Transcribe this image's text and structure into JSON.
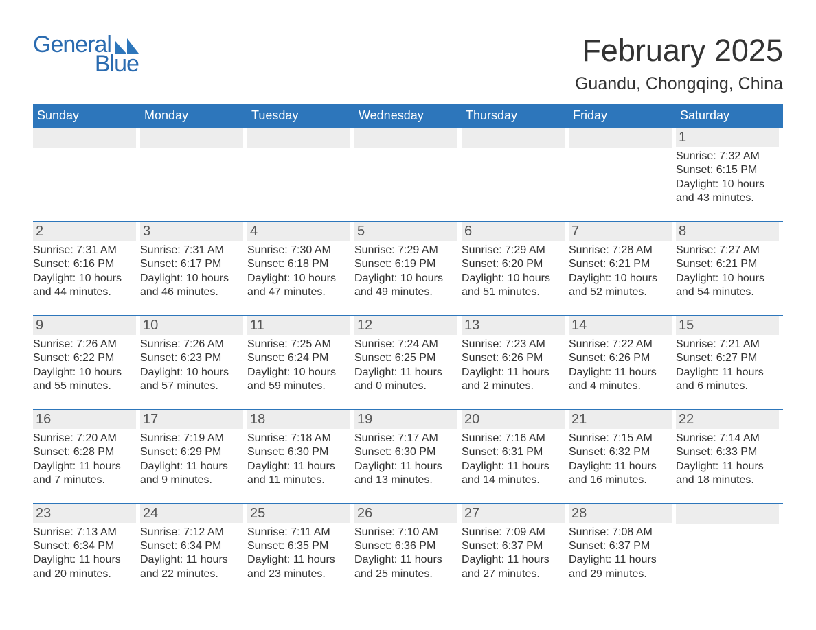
{
  "brand": {
    "line1": "General",
    "line2": "Blue",
    "accent": "#2d76bb"
  },
  "title": "February 2025",
  "location": "Guandu, Chongqing, China",
  "dow": [
    "Sunday",
    "Monday",
    "Tuesday",
    "Wednesday",
    "Thursday",
    "Friday",
    "Saturday"
  ],
  "labels": {
    "sunrise": "Sunrise:",
    "sunset": "Sunset:",
    "daylight": "Daylight:"
  },
  "colors": {
    "header_bg": "#2d76bb",
    "header_text": "#ffffff",
    "daynum_bg": "#ededed",
    "daynum_text": "#555555",
    "body_text": "#333333",
    "page_bg": "#ffffff"
  },
  "typography": {
    "title_fontsize": 45,
    "location_fontsize": 25,
    "dow_fontsize": 18,
    "daynum_fontsize": 20,
    "body_fontsize": 16,
    "logo_fontsize": 34
  },
  "weeks": [
    [
      null,
      null,
      null,
      null,
      null,
      null,
      {
        "n": "1",
        "sr": "7:32 AM",
        "ss": "6:15 PM",
        "dl": "10 hours and 43 minutes."
      }
    ],
    [
      {
        "n": "2",
        "sr": "7:31 AM",
        "ss": "6:16 PM",
        "dl": "10 hours and 44 minutes."
      },
      {
        "n": "3",
        "sr": "7:31 AM",
        "ss": "6:17 PM",
        "dl": "10 hours and 46 minutes."
      },
      {
        "n": "4",
        "sr": "7:30 AM",
        "ss": "6:18 PM",
        "dl": "10 hours and 47 minutes."
      },
      {
        "n": "5",
        "sr": "7:29 AM",
        "ss": "6:19 PM",
        "dl": "10 hours and 49 minutes."
      },
      {
        "n": "6",
        "sr": "7:29 AM",
        "ss": "6:20 PM",
        "dl": "10 hours and 51 minutes."
      },
      {
        "n": "7",
        "sr": "7:28 AM",
        "ss": "6:21 PM",
        "dl": "10 hours and 52 minutes."
      },
      {
        "n": "8",
        "sr": "7:27 AM",
        "ss": "6:21 PM",
        "dl": "10 hours and 54 minutes."
      }
    ],
    [
      {
        "n": "9",
        "sr": "7:26 AM",
        "ss": "6:22 PM",
        "dl": "10 hours and 55 minutes."
      },
      {
        "n": "10",
        "sr": "7:26 AM",
        "ss": "6:23 PM",
        "dl": "10 hours and 57 minutes."
      },
      {
        "n": "11",
        "sr": "7:25 AM",
        "ss": "6:24 PM",
        "dl": "10 hours and 59 minutes."
      },
      {
        "n": "12",
        "sr": "7:24 AM",
        "ss": "6:25 PM",
        "dl": "11 hours and 0 minutes."
      },
      {
        "n": "13",
        "sr": "7:23 AM",
        "ss": "6:26 PM",
        "dl": "11 hours and 2 minutes."
      },
      {
        "n": "14",
        "sr": "7:22 AM",
        "ss": "6:26 PM",
        "dl": "11 hours and 4 minutes."
      },
      {
        "n": "15",
        "sr": "7:21 AM",
        "ss": "6:27 PM",
        "dl": "11 hours and 6 minutes."
      }
    ],
    [
      {
        "n": "16",
        "sr": "7:20 AM",
        "ss": "6:28 PM",
        "dl": "11 hours and 7 minutes."
      },
      {
        "n": "17",
        "sr": "7:19 AM",
        "ss": "6:29 PM",
        "dl": "11 hours and 9 minutes."
      },
      {
        "n": "18",
        "sr": "7:18 AM",
        "ss": "6:30 PM",
        "dl": "11 hours and 11 minutes."
      },
      {
        "n": "19",
        "sr": "7:17 AM",
        "ss": "6:30 PM",
        "dl": "11 hours and 13 minutes."
      },
      {
        "n": "20",
        "sr": "7:16 AM",
        "ss": "6:31 PM",
        "dl": "11 hours and 14 minutes."
      },
      {
        "n": "21",
        "sr": "7:15 AM",
        "ss": "6:32 PM",
        "dl": "11 hours and 16 minutes."
      },
      {
        "n": "22",
        "sr": "7:14 AM",
        "ss": "6:33 PM",
        "dl": "11 hours and 18 minutes."
      }
    ],
    [
      {
        "n": "23",
        "sr": "7:13 AM",
        "ss": "6:34 PM",
        "dl": "11 hours and 20 minutes."
      },
      {
        "n": "24",
        "sr": "7:12 AM",
        "ss": "6:34 PM",
        "dl": "11 hours and 22 minutes."
      },
      {
        "n": "25",
        "sr": "7:11 AM",
        "ss": "6:35 PM",
        "dl": "11 hours and 23 minutes."
      },
      {
        "n": "26",
        "sr": "7:10 AM",
        "ss": "6:36 PM",
        "dl": "11 hours and 25 minutes."
      },
      {
        "n": "27",
        "sr": "7:09 AM",
        "ss": "6:37 PM",
        "dl": "11 hours and 27 minutes."
      },
      {
        "n": "28",
        "sr": "7:08 AM",
        "ss": "6:37 PM",
        "dl": "11 hours and 29 minutes."
      },
      null
    ]
  ]
}
